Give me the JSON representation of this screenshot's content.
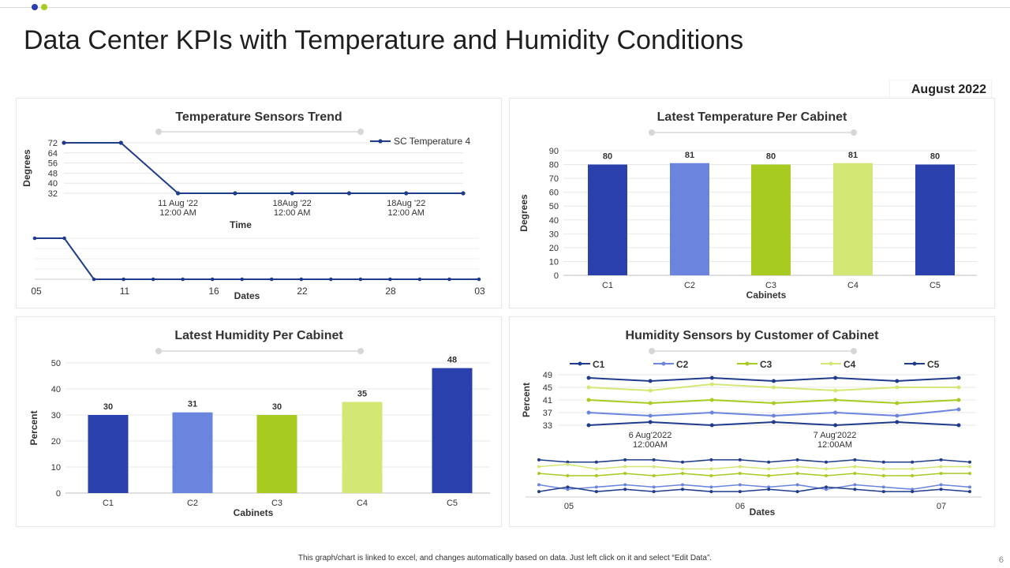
{
  "page": {
    "title": "Data Center KPIs with Temperature and Humidity Conditions",
    "badge": "August 2022",
    "footer": "This graph/chart is linked to excel, and changes automatically based on data. Just left click on it and select “Edit Data”.",
    "page_number": "6"
  },
  "colors": {
    "dark_blue": "#2a40ad",
    "light_blue": "#6b85de",
    "green": "#a8cb22",
    "light_green": "#d3e874",
    "line_blue": "#1f3c8c"
  },
  "chart_data": [
    {
      "type": "line",
      "title": "Temperature Sensors Trend",
      "xlabel": "Time",
      "ylabel": "Degrees",
      "legend": "top-right",
      "yticks": [
        32,
        40,
        48,
        56,
        64,
        72
      ],
      "ylim": [
        32,
        72
      ],
      "xtick_labels": [
        "11 Aug '22\n12:00 AM",
        "18Aug '22\n12:00 AM",
        "18Aug '22\n12:00 AM"
      ],
      "series": [
        {
          "name": "SC Temperature 4",
          "values": [
            72,
            72,
            32,
            32,
            32,
            32,
            32,
            32
          ]
        }
      ],
      "navigator": {
        "xlabel": "Dates",
        "tick_labels": [
          "05",
          "11",
          "16",
          "22",
          "28",
          "03"
        ],
        "values": [
          72,
          72,
          32,
          32,
          32,
          32,
          32,
          32,
          32,
          32,
          32,
          32,
          32,
          32,
          32,
          32
        ]
      }
    },
    {
      "type": "bar",
      "title": "Latest Temperature Per Cabinet",
      "xlabel": "Cabinets",
      "ylabel": "Degrees",
      "categories": [
        "C1",
        "C2",
        "C3",
        "C4",
        "C5"
      ],
      "values": [
        80,
        81,
        80,
        81,
        80
      ],
      "ylim": [
        0,
        90
      ],
      "yticks": [
        0,
        10,
        20,
        30,
        40,
        50,
        60,
        70,
        80,
        90
      ]
    },
    {
      "type": "bar",
      "title": "Latest Humidity Per Cabinet",
      "xlabel": "Cabinets",
      "ylabel": "Percent",
      "categories": [
        "C1",
        "C2",
        "C3",
        "C4",
        "C5"
      ],
      "values": [
        30,
        31,
        30,
        35,
        48
      ],
      "ylim": [
        0,
        50
      ],
      "yticks": [
        0,
        10,
        20,
        30,
        40,
        50
      ]
    },
    {
      "type": "line",
      "title": "Humidity Sensors by Customer of Cabinet",
      "ylabel": "Percent",
      "legend": "top",
      "yticks": [
        33,
        37,
        41,
        45,
        49
      ],
      "ylim": [
        33,
        49
      ],
      "xtick_labels": [
        "6 Aug'2022\n12:00AM",
        "7 Aug'2022\n12:00AM"
      ],
      "series": [
        {
          "name": "C1",
          "values": [
            48,
            47,
            48,
            47,
            48,
            47,
            48
          ]
        },
        {
          "name": "C2",
          "values": [
            37,
            36,
            37,
            36,
            37,
            36,
            38
          ]
        },
        {
          "name": "C3",
          "values": [
            41,
            40,
            41,
            40,
            41,
            40,
            41
          ]
        },
        {
          "name": "C4",
          "values": [
            45,
            44,
            46,
            45,
            44,
            45,
            45
          ]
        },
        {
          "name": "C5",
          "values": [
            33,
            34,
            33,
            34,
            33,
            34,
            33
          ]
        }
      ],
      "navigator": {
        "xlabel": "Dates",
        "tick_labels": [
          "05",
          "06",
          "07"
        ],
        "series": [
          [
            48,
            47,
            47,
            48,
            48,
            47,
            48,
            48,
            47,
            48,
            47,
            48,
            47,
            47,
            48,
            47
          ],
          [
            45,
            46,
            44,
            45,
            45,
            44,
            44,
            45,
            44,
            45,
            44,
            45,
            44,
            44,
            45,
            45
          ],
          [
            42,
            41,
            41,
            42,
            41,
            42,
            41,
            42,
            41,
            42,
            41,
            42,
            41,
            41,
            42,
            42
          ],
          [
            37,
            35,
            36,
            37,
            36,
            37,
            36,
            37,
            36,
            37,
            35,
            37,
            36,
            35,
            37,
            36
          ],
          [
            34,
            36,
            34,
            35,
            34,
            35,
            34,
            34,
            35,
            34,
            36,
            35,
            34,
            34,
            35,
            34
          ]
        ]
      }
    }
  ]
}
